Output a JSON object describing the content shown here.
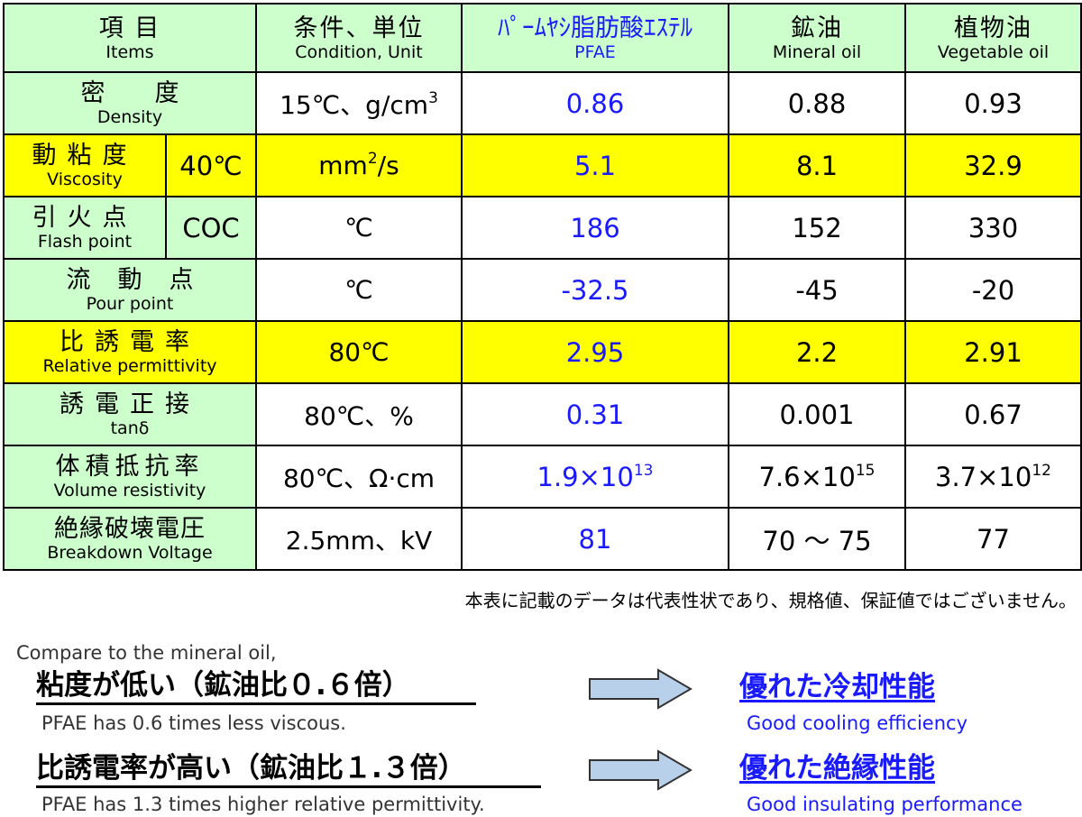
{
  "header": {
    "items_jp": "項 目",
    "items_en": "Items",
    "cond_jp": "条件、単位",
    "cond_en": "Condition, Unit",
    "pfae_jp": "ﾊﾟｰﾑﾔｼ脂肪酸ｴｽﾃﾙ",
    "pfae_en": "PFAE",
    "mineral_jp": "鉱油",
    "mineral_en": "Mineral oil",
    "veg_jp": "植物油",
    "veg_en": "Vegetable oil"
  },
  "rows": {
    "density": {
      "jp": "密度",
      "en": "Density",
      "cond_pre": "15℃、g/cm",
      "cond_sup": "3",
      "pfae": "0.86",
      "mineral": "0.88",
      "veg": "0.93"
    },
    "viscosity": {
      "jp": "動粘度",
      "en": "Viscosity",
      "temp": "40℃",
      "cond_pre": "mm",
      "cond_sup": "2",
      "cond_post": "/s",
      "pfae": "5.1",
      "mineral": "8.1",
      "veg": "32.9"
    },
    "flash": {
      "jp": "引火点",
      "en": "Flash point",
      "temp": "COC",
      "cond": "℃",
      "pfae": "186",
      "mineral": "152",
      "veg": "330"
    },
    "pour": {
      "jp": "流動点",
      "en": "Pour point",
      "cond": "℃",
      "pfae": "-32.5",
      "mineral": "-45",
      "veg": "-20"
    },
    "permittivity": {
      "jp": "比誘電率",
      "en": "Relative permittivity",
      "cond": "80℃",
      "pfae": "2.95",
      "mineral": "2.2",
      "veg": "2.91"
    },
    "tand": {
      "jp": "誘電正接",
      "en": "tanδ",
      "cond": "80℃、%",
      "pfae": "0.31",
      "mineral": "0.001",
      "veg": "0.67"
    },
    "resistivity": {
      "jp": "体積抵抗率",
      "en": "Volume resistivity",
      "cond": "80℃、Ω·cm",
      "pfae_base": "1.9×10",
      "pfae_exp": "13",
      "mineral_base": "7.6×10",
      "mineral_exp": "15",
      "veg_base": "3.7×10",
      "veg_exp": "12"
    },
    "breakdown": {
      "jp": "絶縁破壊電圧",
      "en": "Breakdown Voltage",
      "cond": "2.5mm、kV",
      "pfae": "81",
      "mineral": "70 ～ 75",
      "veg": "77"
    }
  },
  "note": "本表に記載のデータは代表性状であり、規格値、保証値ではございません。",
  "compare": {
    "intro": "Compare to the mineral oil,",
    "claim1": "粘度が低い（鉱油比０.６倍）",
    "claim1_en": "PFAE has 0.6 times less viscous.",
    "result1": "優れた冷却性能",
    "result1_en": "Good cooling efficiency",
    "claim2": "比誘電率が高い（鉱油比１.３倍）",
    "claim2_en": "PFAE has 1.3 times higher relative permittivity.",
    "result2": "優れた絶縁性能",
    "result2_en": "Good  insulating performance"
  },
  "colors": {
    "header_green": "#ccffcc",
    "highlight_yellow": "#ffff00",
    "pfae_blue": "#1a1aff",
    "arrow_fill": "#b8d0ea"
  }
}
